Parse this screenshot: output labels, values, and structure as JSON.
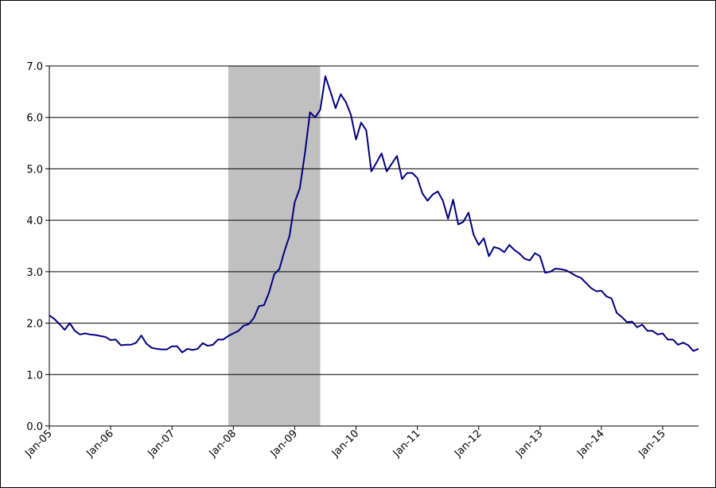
{
  "chart_data": {
    "type": "line",
    "color": "#000080",
    "shade_color": "#c0c0c0",
    "shaded_categories": [
      35,
      53
    ],
    "categories": [
      "Jan-05",
      null,
      null,
      null,
      null,
      null,
      null,
      null,
      null,
      null,
      null,
      null,
      "Jan-06",
      null,
      null,
      null,
      null,
      null,
      null,
      null,
      null,
      null,
      null,
      null,
      "Jan-07",
      null,
      null,
      null,
      null,
      null,
      null,
      null,
      null,
      null,
      null,
      null,
      "Jan-08",
      null,
      null,
      null,
      null,
      null,
      null,
      null,
      null,
      null,
      null,
      null,
      "Jan-09",
      null,
      null,
      null,
      null,
      null,
      null,
      null,
      null,
      null,
      null,
      null,
      "Jan-10",
      null,
      null,
      null,
      null,
      null,
      null,
      null,
      null,
      null,
      null,
      null,
      "Jan-11",
      null,
      null,
      null,
      null,
      null,
      null,
      null,
      null,
      null,
      null,
      null,
      "Jan-12",
      null,
      null,
      null,
      null,
      null,
      null,
      null,
      null,
      null,
      null,
      null,
      "Jan-13",
      null,
      null,
      null,
      null,
      null,
      null,
      null,
      null,
      null,
      null,
      null,
      "Jan-14",
      null,
      null,
      null,
      null,
      null,
      null,
      null,
      null,
      null,
      null,
      null,
      "Jan-15",
      null,
      null,
      null,
      null,
      null,
      null,
      null
    ],
    "values": [
      2.15,
      2.08,
      1.98,
      1.87,
      2.0,
      1.85,
      1.78,
      1.8,
      1.78,
      1.77,
      1.75,
      1.73,
      1.67,
      1.68,
      1.57,
      1.58,
      1.58,
      1.62,
      1.76,
      1.6,
      1.52,
      1.5,
      1.49,
      1.49,
      1.55,
      1.55,
      1.43,
      1.5,
      1.48,
      1.5,
      1.61,
      1.56,
      1.58,
      1.68,
      1.68,
      1.75,
      1.8,
      1.85,
      1.95,
      1.98,
      2.1,
      2.33,
      2.35,
      2.6,
      2.95,
      3.05,
      3.4,
      3.7,
      4.35,
      4.62,
      5.3,
      6.1,
      6.0,
      6.15,
      6.8,
      6.5,
      6.18,
      6.45,
      6.3,
      6.05,
      5.57,
      5.9,
      5.75,
      4.95,
      5.12,
      5.3,
      4.95,
      5.1,
      5.25,
      4.8,
      4.92,
      4.92,
      4.82,
      4.52,
      4.38,
      4.5,
      4.56,
      4.38,
      4.03,
      4.4,
      3.92,
      3.97,
      4.15,
      3.72,
      3.52,
      3.65,
      3.3,
      3.48,
      3.45,
      3.38,
      3.52,
      3.42,
      3.35,
      3.25,
      3.22,
      3.36,
      3.3,
      2.98,
      3.0,
      3.06,
      3.05,
      3.03,
      2.98,
      2.92,
      2.88,
      2.78,
      2.68,
      2.62,
      2.63,
      2.52,
      2.48,
      2.2,
      2.12,
      2.02,
      2.03,
      1.92,
      1.97,
      1.85,
      1.85,
      1.78,
      1.8,
      1.68,
      1.68,
      1.58,
      1.62,
      1.57,
      1.46,
      1.5
    ],
    "ylim": [
      0,
      7
    ],
    "yticks": [
      {
        "value": 0,
        "label": "0.0"
      },
      {
        "value": 1,
        "label": "1.0"
      },
      {
        "value": 2,
        "label": "2.0"
      },
      {
        "value": 3,
        "label": "3.0"
      },
      {
        "value": 4,
        "label": "4.0"
      },
      {
        "value": 5,
        "label": "5.0"
      },
      {
        "value": 6,
        "label": "6.0"
      },
      {
        "value": 7,
        "label": "7.0"
      }
    ],
    "grid": true
  }
}
